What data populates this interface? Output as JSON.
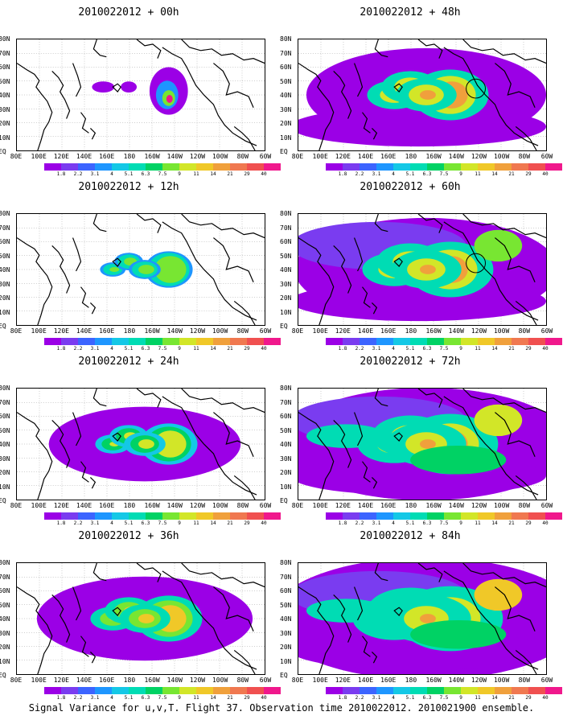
{
  "colors": [
    "#9b00e6",
    "#7a3cf0",
    "#3c64ff",
    "#1e96ff",
    "#14c8e6",
    "#00dcb4",
    "#00d264",
    "#78e632",
    "#d2e628",
    "#f0c828",
    "#f0a03c",
    "#f07850",
    "#f05050",
    "#f0188c"
  ],
  "colorbar_labels": [
    "1.8",
    "2.2",
    "3.1",
    "4",
    "5.1",
    "6.3",
    "7.5",
    "9",
    "11",
    "14",
    "21",
    "29",
    "40"
  ],
  "lat_labels": [
    "80N",
    "70N",
    "60N",
    "50N",
    "40N",
    "30N",
    "20N",
    "10N",
    "EQ"
  ],
  "lon_labels": [
    "80E",
    "100E",
    "120E",
    "140E",
    "160E",
    "180",
    "160W",
    "140W",
    "120W",
    "100W",
    "80W",
    "60W"
  ],
  "panels": [
    {
      "id": "p00",
      "title": "2010022012 + 00h",
      "level": 0
    },
    {
      "id": "p12",
      "title": "2010022012 + 12h",
      "level": 1
    },
    {
      "id": "p24",
      "title": "2010022012 + 24h",
      "level": 2
    },
    {
      "id": "p36",
      "title": "2010022012 + 36h",
      "level": 3
    },
    {
      "id": "p48",
      "title": "2010022012 + 48h",
      "level": 4
    },
    {
      "id": "p60",
      "title": "2010022012 + 60h",
      "level": 5
    },
    {
      "id": "p72",
      "title": "2010022012 + 72h",
      "level": 6
    },
    {
      "id": "p84",
      "title": "2010022012 + 84h",
      "level": 7
    }
  ],
  "caption": "Signal Variance for u,v,T. Flight 37. Observation time 2010022012. 2010021900 ensemble."
}
